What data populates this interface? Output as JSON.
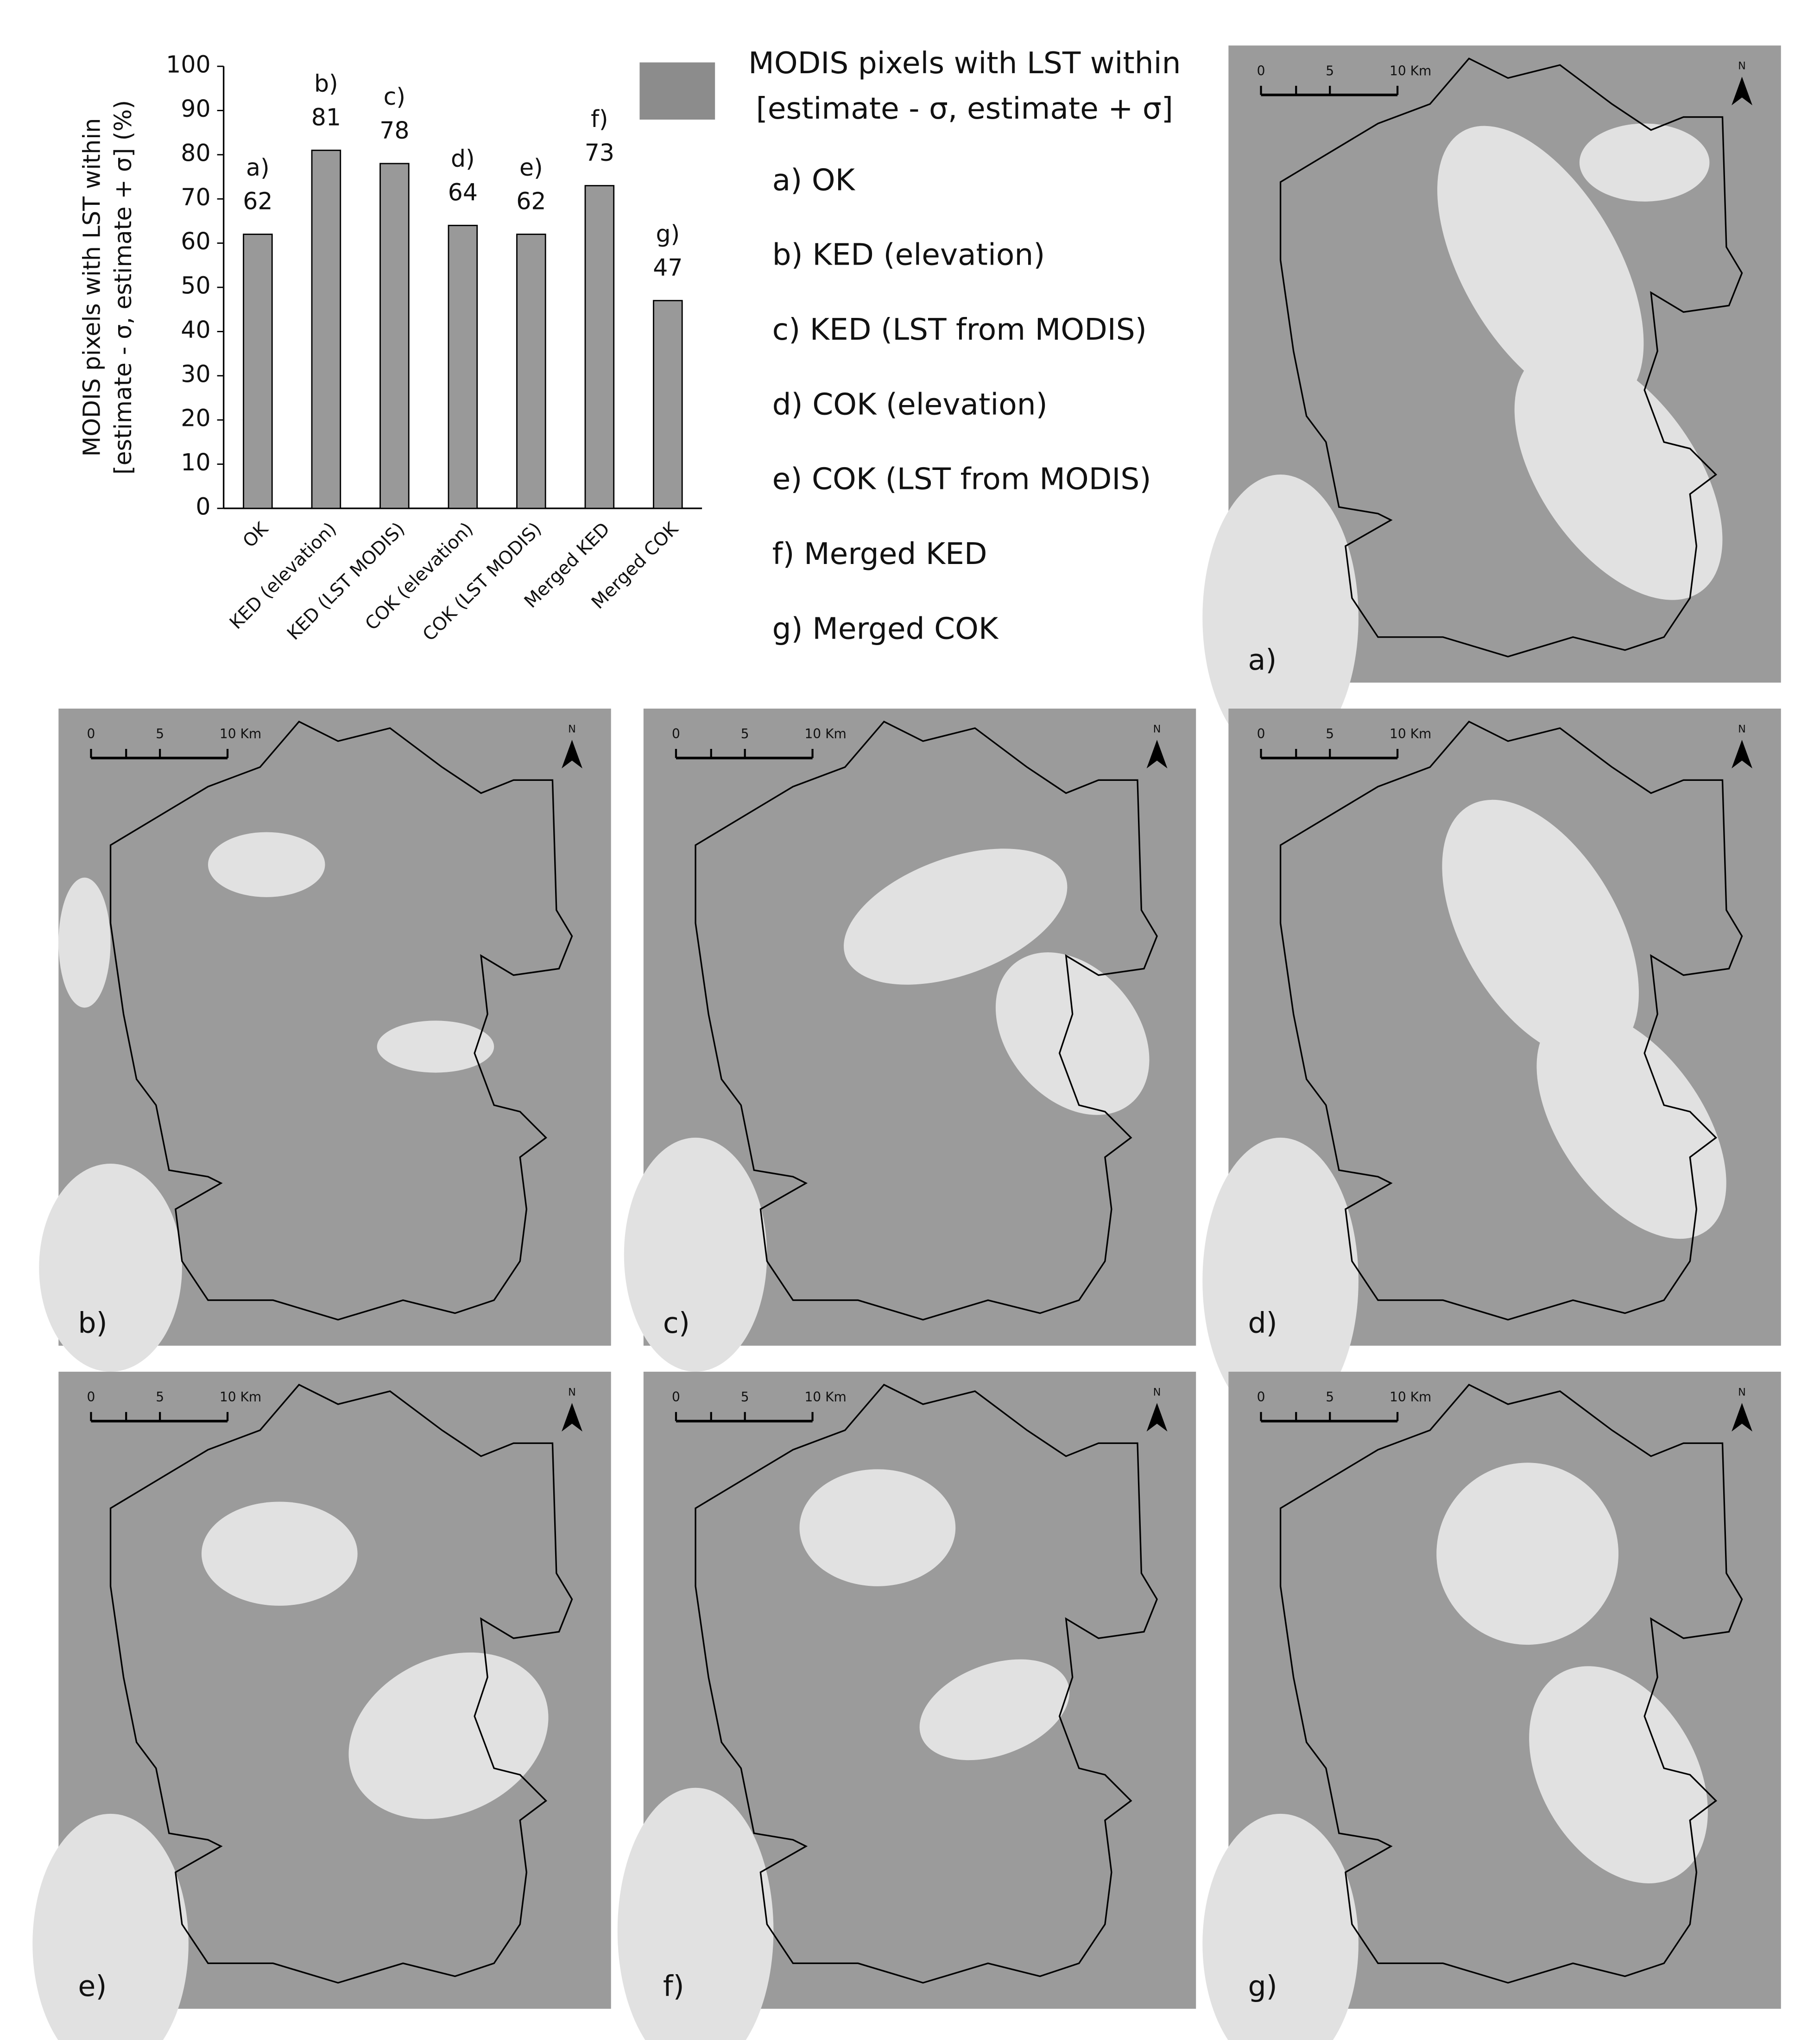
{
  "chart_data": {
    "type": "bar",
    "categories": [
      "OK",
      "KED (elevation)",
      "KED (LST MODIS)",
      "COK (elevation)",
      "COK (LST MODIS)",
      "Merged KED",
      "Merged COK"
    ],
    "values": [
      62,
      81,
      78,
      64,
      62,
      73,
      47
    ],
    "annotations": [
      "a)",
      "b)",
      "c)",
      "d)",
      "e)",
      "f)",
      "g)"
    ],
    "ylabel": [
      "MODIS pixels with LST within",
      "[estimate - σ, estimate + σ] (%)"
    ],
    "ylim": [
      0,
      100
    ],
    "yticks": [
      0,
      10,
      20,
      30,
      40,
      50,
      60,
      70,
      80,
      90,
      100
    ],
    "color": "#999999",
    "legend_title": [
      "MODIS pixels with LST within",
      "[estimate - σ, estimate + σ]"
    ],
    "legend_items": [
      "a) OK",
      "b) KED (elevation)",
      "c) KED (LST from MODIS)",
      "d) COK (elevation)",
      "e) COK (LST from MODIS)",
      "f) Merged KED",
      "g) Merged COK"
    ]
  },
  "maps": {
    "panels": [
      "a)",
      "b)",
      "c)",
      "d)",
      "e)",
      "f)",
      "g)"
    ],
    "scale_labels": [
      "0",
      "5",
      "10 Km"
    ],
    "north": "N"
  }
}
